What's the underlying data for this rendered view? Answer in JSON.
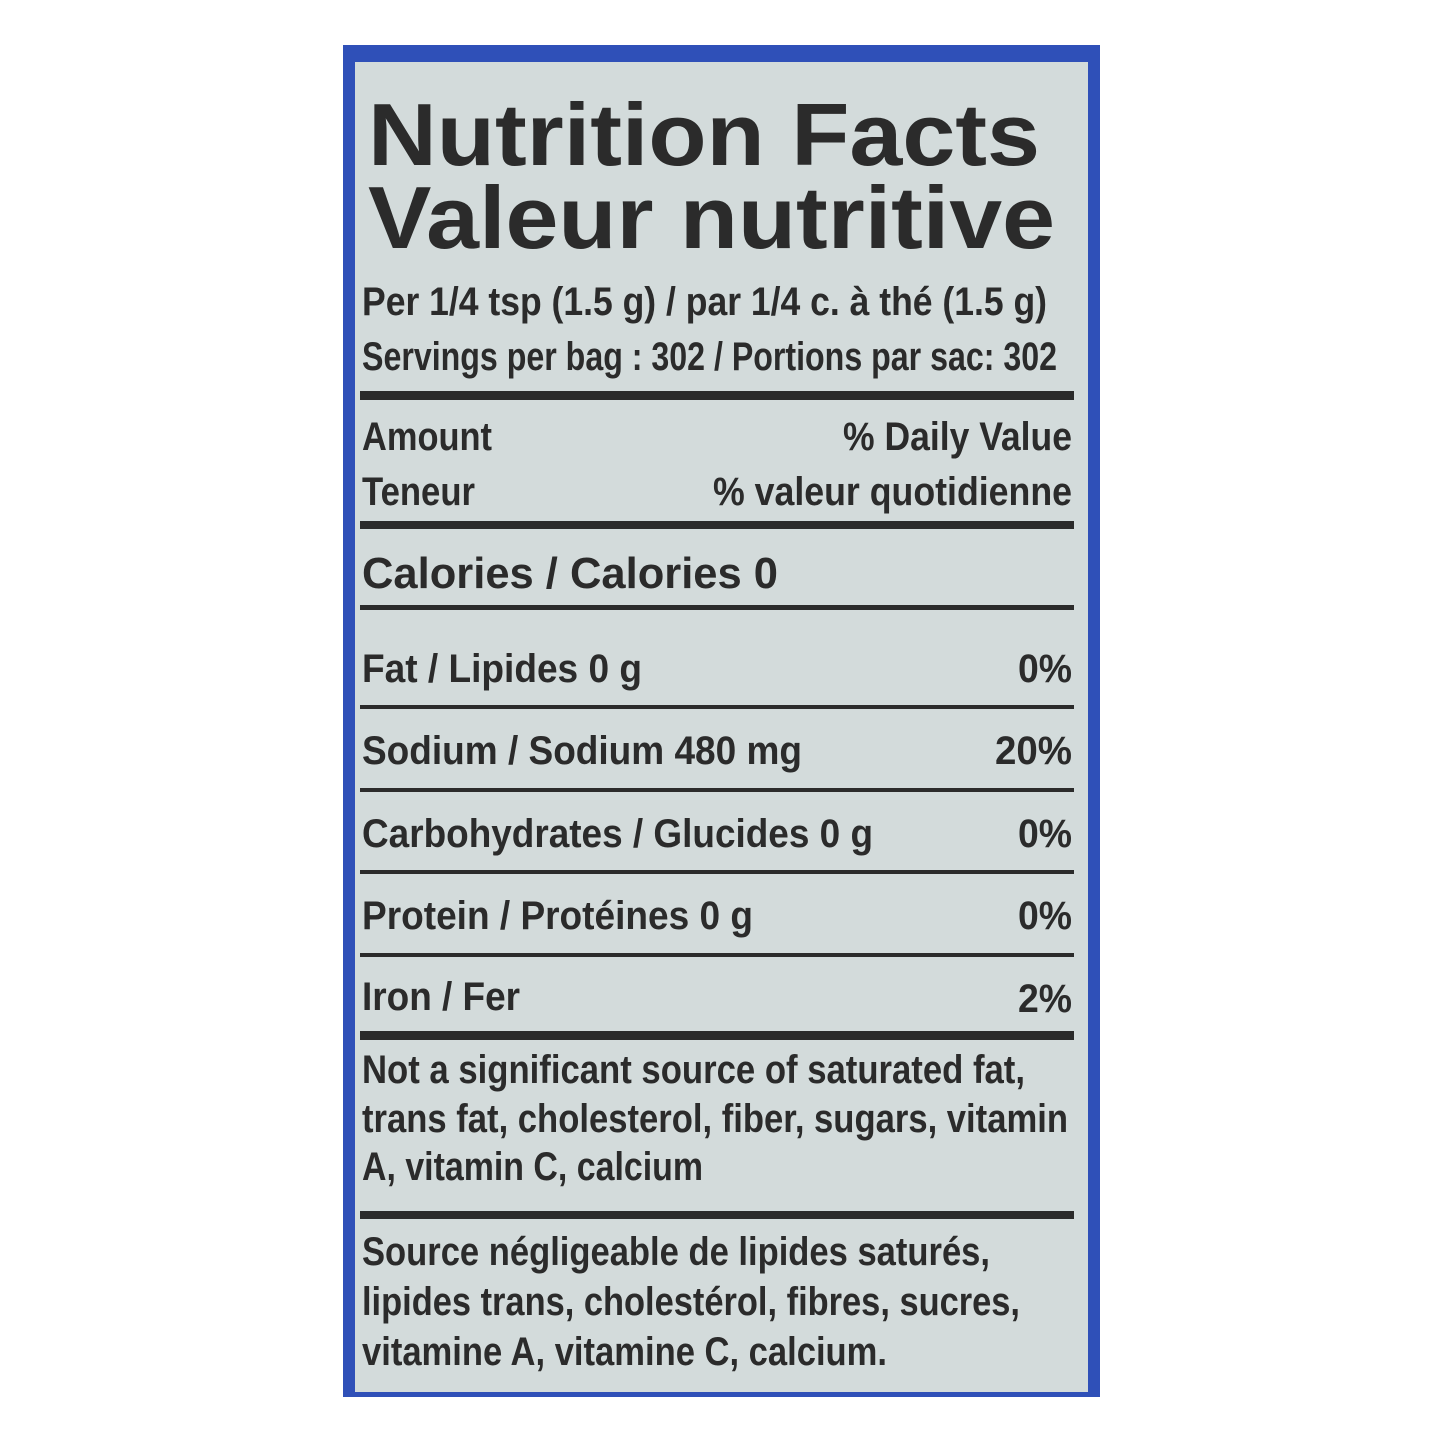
{
  "label": {
    "title": "Nutrition Facts",
    "title_fr": "Valeur nutritive",
    "serving": "Per 1/4 tsp (1.5 g) / par 1/4 c. à thé (1.5 g)",
    "servings": "Servings per bag : 302 / Portions par sac: 302",
    "header": {
      "amount": "Amount",
      "amount_fr": "Teneur",
      "dv": "% Daily Value",
      "dv_fr": "% valeur quotidienne"
    },
    "calories": "Calories / Calories 0",
    "nutrients": [
      {
        "name": "Fat / Lipides 0 g",
        "dv": "0%"
      },
      {
        "name": "Sodium / Sodium 480 mg",
        "dv": "20%"
      },
      {
        "name": "Carbohydrates / Glucides 0 g",
        "dv": "0%"
      },
      {
        "name": "Protein / Protéines 0 g",
        "dv": "0%"
      },
      {
        "name": "Iron / Fer",
        "dv": "2%"
      }
    ],
    "footnote_en": [
      "Not a significant source of saturated fat,",
      "trans fat, cholesterol, fiber, sugars, vitamin",
      "A, vitamin C, calcium"
    ],
    "footnote_fr": [
      "Source négligeable de lipides saturés,",
      "lipides trans, cholestérol, fibres, sucres,",
      "vitamine A, vitamine C, calcium."
    ]
  }
}
